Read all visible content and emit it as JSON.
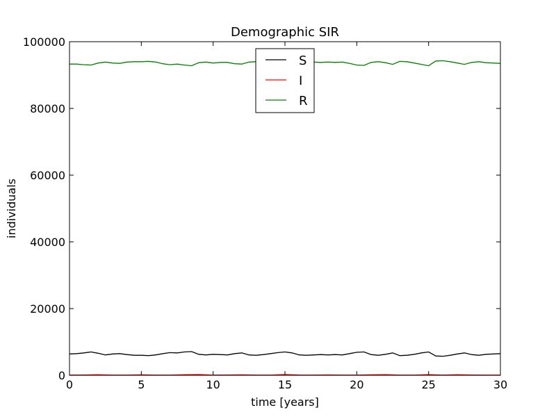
{
  "chart_data": {
    "type": "line",
    "title": "Demographic SIR",
    "xlabel": "time [years]",
    "ylabel": "individuals",
    "xlim": [
      0,
      30
    ],
    "ylim": [
      0,
      100000
    ],
    "xticks": [
      0,
      5,
      10,
      15,
      20,
      25,
      30
    ],
    "xtick_labels": [
      "0",
      "5",
      "10",
      "15",
      "20",
      "25",
      "30"
    ],
    "yticks": [
      0,
      20000,
      40000,
      60000,
      80000,
      100000
    ],
    "ytick_labels": [
      "0",
      "20000",
      "40000",
      "60000",
      "80000",
      "100000"
    ],
    "grid": false,
    "legend_position": "top-center",
    "series": [
      {
        "name": "S",
        "color": "#000000",
        "x": [
          0,
          0.5,
          1,
          1.5,
          2,
          2.5,
          3,
          3.5,
          4,
          4.5,
          5,
          5.5,
          6,
          6.5,
          7,
          7.5,
          8,
          8.5,
          9,
          9.5,
          10,
          10.5,
          11,
          11.5,
          12,
          12.5,
          13,
          13.5,
          14,
          14.5,
          15,
          15.5,
          16,
          16.5,
          17,
          17.5,
          18,
          18.5,
          19,
          19.5,
          20,
          20.5,
          21,
          21.5,
          22,
          22.5,
          23,
          23.5,
          24,
          24.5,
          25,
          25.5,
          26,
          26.5,
          27,
          27.5,
          28,
          28.5,
          29,
          29.5,
          30
        ],
        "y": [
          6400,
          6500,
          6700,
          7000,
          6600,
          6100,
          6400,
          6500,
          6200,
          6000,
          6000,
          5900,
          6100,
          6500,
          6800,
          6700,
          7000,
          7100,
          6300,
          6100,
          6300,
          6200,
          6100,
          6500,
          6700,
          6100,
          6000,
          6200,
          6500,
          6800,
          7000,
          6700,
          6100,
          6000,
          6100,
          6200,
          6100,
          6200,
          6100,
          6500,
          6900,
          7000,
          6200,
          6000,
          6300,
          6700,
          5900,
          6000,
          6300,
          6700,
          7000,
          5800,
          5700,
          6000,
          6400,
          6700,
          6200,
          6000,
          6300,
          6400,
          6500
        ]
      },
      {
        "name": "I",
        "color": "#ff0000",
        "x": [
          0,
          1,
          2,
          3,
          4,
          5,
          6,
          7,
          8,
          9,
          10,
          11,
          12,
          13,
          14,
          15,
          16,
          17,
          18,
          19,
          20,
          21,
          22,
          23,
          24,
          25,
          26,
          27,
          28,
          29,
          30
        ],
        "y": [
          80,
          110,
          180,
          90,
          70,
          140,
          60,
          90,
          190,
          220,
          70,
          110,
          140,
          90,
          60,
          220,
          110,
          80,
          120,
          90,
          60,
          150,
          210,
          90,
          80,
          200,
          70,
          170,
          110,
          80,
          90
        ]
      },
      {
        "name": "R",
        "color": "#008000",
        "x": [
          0,
          0.5,
          1,
          1.5,
          2,
          2.5,
          3,
          3.5,
          4,
          4.5,
          5,
          5.5,
          6,
          6.5,
          7,
          7.5,
          8,
          8.5,
          9,
          9.5,
          10,
          10.5,
          11,
          11.5,
          12,
          12.5,
          13,
          13.5,
          14,
          14.5,
          15,
          15.5,
          16,
          16.5,
          17,
          17.5,
          18,
          18.5,
          19,
          19.5,
          20,
          20.5,
          21,
          21.5,
          22,
          22.5,
          23,
          23.5,
          24,
          24.5,
          25,
          25.5,
          26,
          26.5,
          27,
          27.5,
          28,
          28.5,
          29,
          29.5,
          30
        ],
        "y": [
          93300,
          93300,
          93100,
          93000,
          93600,
          93900,
          93600,
          93500,
          93900,
          94000,
          94000,
          94100,
          93900,
          93400,
          93100,
          93300,
          93000,
          92800,
          93700,
          93900,
          93600,
          93800,
          93800,
          93400,
          93300,
          93900,
          94000,
          93800,
          93500,
          93100,
          92900,
          93300,
          93900,
          94000,
          93900,
          93800,
          93900,
          93800,
          93900,
          93500,
          93000,
          92900,
          93800,
          94000,
          93700,
          93200,
          94100,
          94000,
          93600,
          93200,
          92800,
          94200,
          94300,
          94000,
          93600,
          93200,
          93800,
          94000,
          93700,
          93600,
          93500
        ]
      }
    ]
  }
}
